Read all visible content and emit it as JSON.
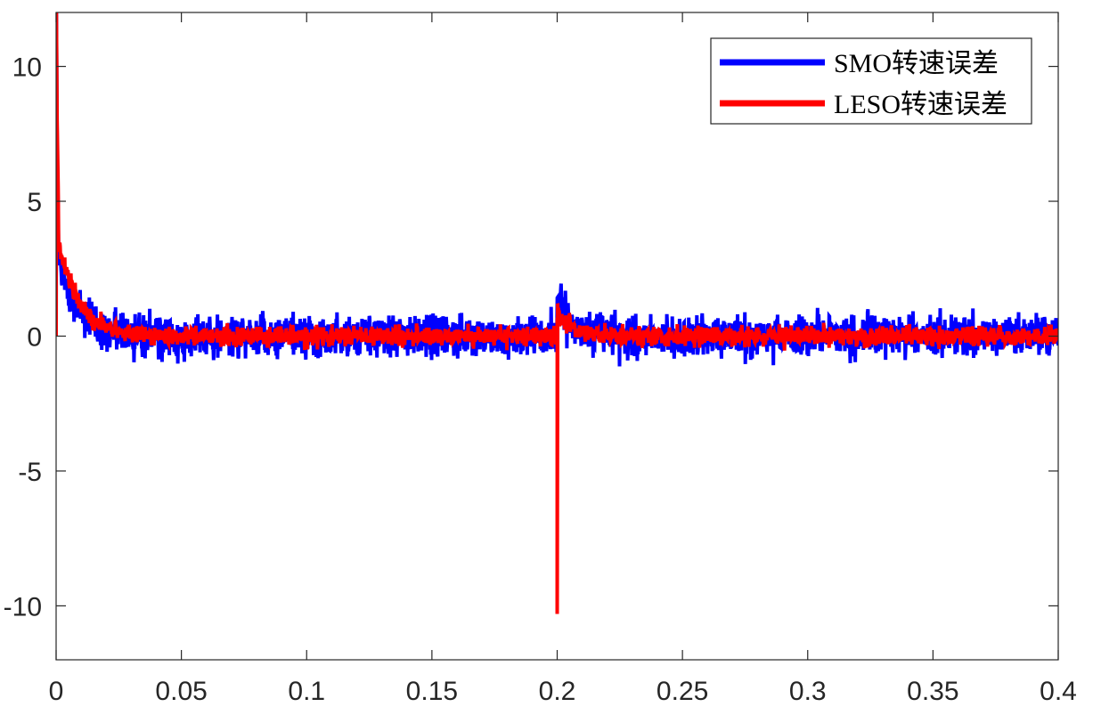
{
  "chart_data": {
    "type": "line",
    "title": "",
    "xlabel": "",
    "ylabel": "",
    "xlim": [
      0,
      0.4
    ],
    "ylim": [
      -12,
      12
    ],
    "x_ticks": [
      0,
      0.05,
      0.1,
      0.15,
      0.2,
      0.25,
      0.3,
      0.35,
      0.4
    ],
    "x_tick_labels": [
      "0",
      "0.05",
      "0.1",
      "0.15",
      "0.2",
      "0.25",
      "0.3",
      "0.35",
      "0.4"
    ],
    "y_ticks": [
      -10,
      -5,
      0,
      5,
      10
    ],
    "y_tick_labels": [
      "-10",
      "-5",
      "0",
      "5",
      "10"
    ],
    "grid": false,
    "legend_position": "top-right",
    "series": [
      {
        "name": "SMO转速误差",
        "color": "#0000ff",
        "initial_spike": 12,
        "initial_value": 3.2,
        "decay_time_constant": 0.008,
        "steady_mean": 0,
        "noise_band": [
          -1.3,
          1.3
        ],
        "disturbance": {
          "x": 0.2,
          "peak": 1.5
        }
      },
      {
        "name": "LESO转速误差",
        "color": "#ff0000",
        "initial_spike": 12,
        "initial_value": 4.0,
        "decay_time_constant": 0.008,
        "steady_mean": 0,
        "noise_band": [
          -0.6,
          0.6
        ],
        "disturbance": {
          "x": 0.2,
          "min": -10.3,
          "peak": 1.2
        }
      }
    ]
  }
}
